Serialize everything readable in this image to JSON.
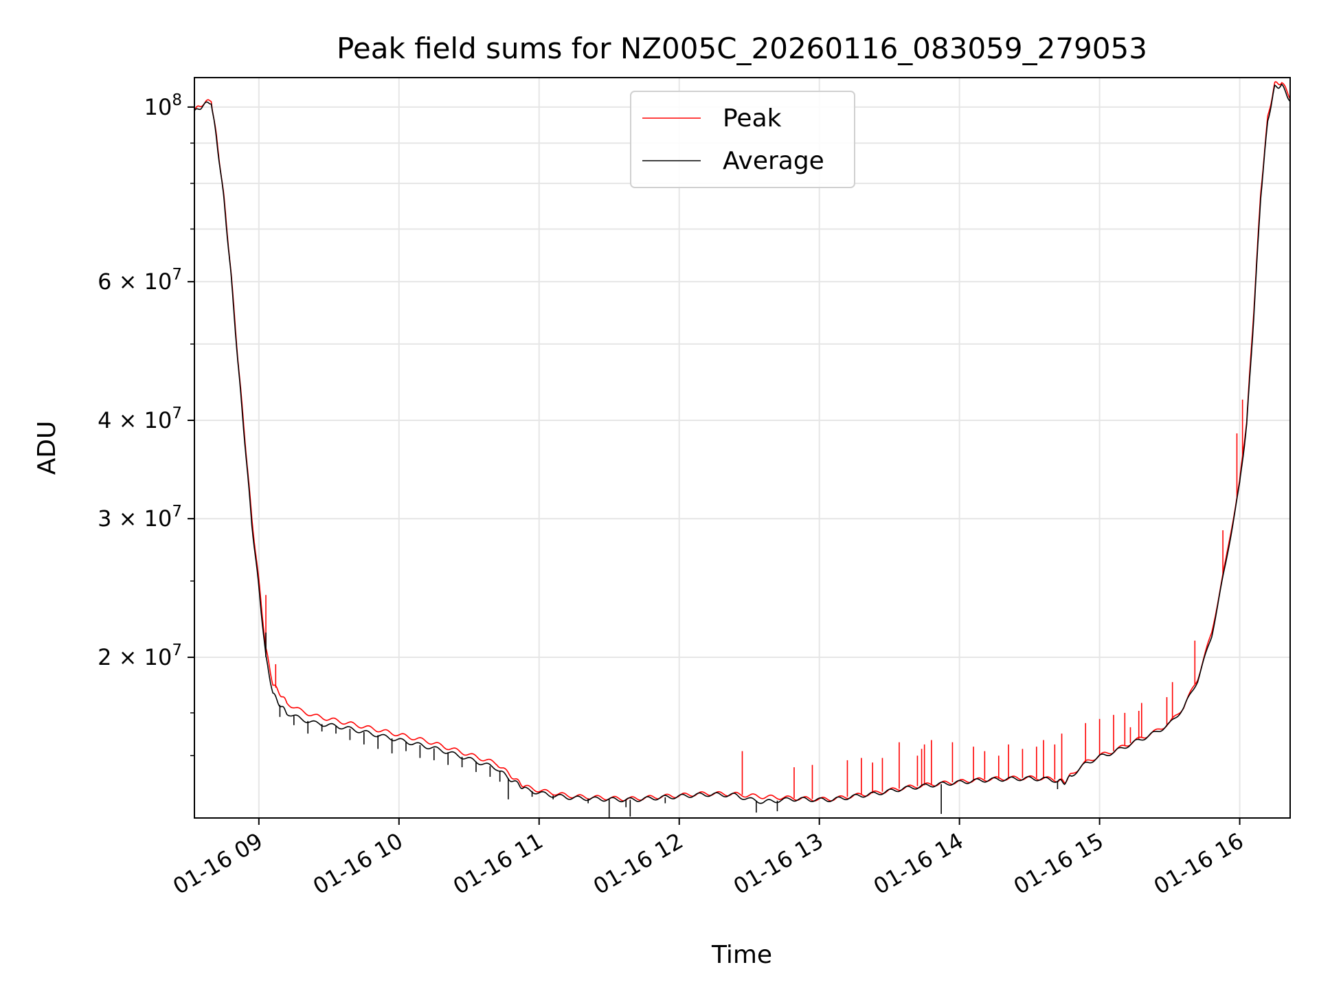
{
  "chart_data": {
    "type": "line",
    "title": "Peak field sums for NZ005C_20260116_083059_279053",
    "xlabel": "Time",
    "ylabel": "ADU",
    "yscale": "log",
    "xlim": [
      8.54,
      16.36
    ],
    "ylim": [
      12500000,
      109000000
    ],
    "grid": true,
    "legend_position": "upper center",
    "x_ticks": [
      {
        "value": 9,
        "label": "01-16 09"
      },
      {
        "value": 10,
        "label": "01-16 10"
      },
      {
        "value": 11,
        "label": "01-16 11"
      },
      {
        "value": 12,
        "label": "01-16 12"
      },
      {
        "value": 13,
        "label": "01-16 13"
      },
      {
        "value": 14,
        "label": "01-16 14"
      },
      {
        "value": 15,
        "label": "01-16 15"
      },
      {
        "value": 16,
        "label": "01-16 16"
      }
    ],
    "y_ticks": [
      {
        "value": 100000000,
        "base": "10",
        "exp": "8",
        "mult": ""
      },
      {
        "value": 60000000,
        "base": "10",
        "exp": "7",
        "mult": "6 × "
      },
      {
        "value": 40000000,
        "base": "10",
        "exp": "7",
        "mult": "4 × "
      },
      {
        "value": 30000000,
        "base": "10",
        "exp": "7",
        "mult": "3 × "
      },
      {
        "value": 20000000,
        "base": "10",
        "exp": "7",
        "mult": "2 × "
      }
    ],
    "y_minor_ticks": [
      90000000,
      80000000,
      70000000,
      50000000
    ],
    "x_unit": "hour of 2026-01-16",
    "series": [
      {
        "name": "Peak",
        "color": "#ff0000",
        "x": [
          8.54,
          8.6,
          8.66,
          8.7,
          8.75,
          8.8,
          8.85,
          8.9,
          8.95,
          9.0,
          9.05,
          9.1,
          9.15,
          9.2,
          9.3,
          9.4,
          9.5,
          9.6,
          9.7,
          9.8,
          9.9,
          10.0,
          10.1,
          10.2,
          10.3,
          10.4,
          10.5,
          10.6,
          10.7,
          10.78,
          10.85,
          10.9,
          11.0,
          11.1,
          11.2,
          11.3,
          11.4,
          11.5,
          11.6,
          11.7,
          11.8,
          11.9,
          12.0,
          12.1,
          12.2,
          12.3,
          12.4,
          12.5,
          12.6,
          12.7,
          12.8,
          12.9,
          13.0,
          13.1,
          13.2,
          13.3,
          13.4,
          13.5,
          13.6,
          13.7,
          13.8,
          13.9,
          14.0,
          14.1,
          14.2,
          14.3,
          14.4,
          14.5,
          14.6,
          14.7,
          14.75,
          14.8,
          14.9,
          15.0,
          15.1,
          15.2,
          15.3,
          15.4,
          15.5,
          15.6,
          15.7,
          15.8,
          15.9,
          16.0,
          16.05,
          16.1,
          16.15,
          16.2,
          16.25,
          16.3,
          16.36
        ],
        "values": [
          99000000,
          101000000,
          102000000,
          91000000,
          77000000,
          62000000,
          48000000,
          38000000,
          30000000,
          25000000,
          20500000,
          18500000,
          18000000,
          17500000,
          17100000,
          16850000,
          16700000,
          16550000,
          16400000,
          16250000,
          16100000,
          15950000,
          15800000,
          15650000,
          15450000,
          15250000,
          15050000,
          14850000,
          14650000,
          14250000,
          13900000,
          13700000,
          13550000,
          13450000,
          13350000,
          13300000,
          13280000,
          13250000,
          13220000,
          13230000,
          13280000,
          13320000,
          13350000,
          13400000,
          13430000,
          13420000,
          13400000,
          13350000,
          13300000,
          13280000,
          13250000,
          13230000,
          13200000,
          13220000,
          13300000,
          13380000,
          13450000,
          13550000,
          13650000,
          13720000,
          13790000,
          13850000,
          13900000,
          13960000,
          14000000,
          14030000,
          14050000,
          14060000,
          14040000,
          13970000,
          13900000,
          14200000,
          14700000,
          15000000,
          15200000,
          15500000,
          15800000,
          16100000,
          16500000,
          17300000,
          18800000,
          21500000,
          26500000,
          33500000,
          40000000,
          55000000,
          78000000,
          97000000,
          107000000,
          107500000,
          103000000
        ],
        "spikes": [
          [
            9.05,
            24000000
          ],
          [
            9.12,
            19600000
          ],
          [
            12.45,
            15200000
          ],
          [
            12.82,
            14500000
          ],
          [
            12.95,
            14600000
          ],
          [
            13.2,
            14800000
          ],
          [
            13.3,
            14900000
          ],
          [
            13.38,
            14700000
          ],
          [
            13.45,
            14900000
          ],
          [
            13.57,
            15600000
          ],
          [
            13.7,
            15000000
          ],
          [
            13.73,
            15300000
          ],
          [
            13.75,
            15500000
          ],
          [
            13.8,
            15700000
          ],
          [
            13.95,
            15600000
          ],
          [
            14.1,
            15400000
          ],
          [
            14.18,
            15200000
          ],
          [
            14.28,
            15000000
          ],
          [
            14.35,
            15500000
          ],
          [
            14.45,
            15300000
          ],
          [
            14.55,
            15400000
          ],
          [
            14.6,
            15700000
          ],
          [
            14.68,
            15500000
          ],
          [
            14.73,
            16000000
          ],
          [
            14.9,
            16500000
          ],
          [
            15.0,
            16700000
          ],
          [
            15.1,
            16900000
          ],
          [
            15.18,
            17000000
          ],
          [
            15.22,
            16300000
          ],
          [
            15.28,
            17100000
          ],
          [
            15.3,
            17500000
          ],
          [
            15.48,
            17800000
          ],
          [
            15.52,
            18600000
          ],
          [
            15.68,
            21000000
          ],
          [
            15.88,
            29000000
          ],
          [
            15.98,
            38500000
          ],
          [
            16.02,
            42500000
          ]
        ]
      },
      {
        "name": "Average",
        "color": "#000000",
        "x": [
          8.54,
          8.6,
          8.66,
          8.7,
          8.75,
          8.8,
          8.85,
          8.9,
          8.95,
          9.0,
          9.05,
          9.1,
          9.15,
          9.2,
          9.3,
          9.4,
          9.5,
          9.6,
          9.7,
          9.8,
          9.9,
          10.0,
          10.1,
          10.2,
          10.3,
          10.4,
          10.5,
          10.6,
          10.7,
          10.78,
          10.85,
          10.9,
          11.0,
          11.1,
          11.2,
          11.3,
          11.4,
          11.5,
          11.6,
          11.7,
          11.8,
          11.9,
          12.0,
          12.1,
          12.2,
          12.3,
          12.4,
          12.5,
          12.6,
          12.7,
          12.8,
          12.9,
          13.0,
          13.1,
          13.2,
          13.3,
          13.4,
          13.5,
          13.6,
          13.7,
          13.8,
          13.9,
          14.0,
          14.1,
          14.2,
          14.3,
          14.4,
          14.5,
          14.6,
          14.7,
          14.75,
          14.8,
          14.9,
          15.0,
          15.1,
          15.2,
          15.3,
          15.4,
          15.5,
          15.6,
          15.7,
          15.8,
          15.9,
          16.0,
          16.05,
          16.1,
          16.15,
          16.2,
          16.25,
          16.3,
          16.36
        ],
        "values": [
          98500000,
          100500000,
          101500000,
          90500000,
          76500000,
          61500000,
          47500000,
          37500000,
          29500000,
          24500000,
          20000000,
          18000000,
          17400000,
          17000000,
          16700000,
          16500000,
          16400000,
          16300000,
          16150000,
          16000000,
          15850000,
          15700000,
          15550000,
          15400000,
          15250000,
          15050000,
          14850000,
          14650000,
          14450000,
          14050000,
          13800000,
          13600000,
          13450000,
          13350000,
          13280000,
          13240000,
          13220000,
          13200000,
          13180000,
          13190000,
          13240000,
          13280000,
          13310000,
          13360000,
          13390000,
          13380000,
          13360000,
          13200000,
          13100000,
          13150000,
          13210000,
          13200000,
          13180000,
          13190000,
          13270000,
          13350000,
          13420000,
          13520000,
          13620000,
          13690000,
          13760000,
          13820000,
          13870000,
          13930000,
          13970000,
          14000000,
          14020000,
          14030000,
          14010000,
          13940000,
          13870000,
          14150000,
          14650000,
          14950000,
          15150000,
          15450000,
          15750000,
          16050000,
          16450000,
          17250000,
          18700000,
          21300000,
          26300000,
          33200000,
          39500000,
          54000000,
          77000000,
          96000000,
          106000000,
          106500000,
          102000000
        ],
        "dips": [
          [
            9.05,
            21500000
          ],
          [
            9.1,
            18000000
          ],
          [
            9.15,
            16800000
          ],
          [
            9.25,
            16400000
          ],
          [
            9.35,
            16000000
          ],
          [
            9.45,
            16100000
          ],
          [
            9.55,
            16000000
          ],
          [
            9.65,
            15700000
          ],
          [
            9.75,
            15500000
          ],
          [
            9.85,
            15300000
          ],
          [
            9.95,
            15100000
          ],
          [
            10.05,
            15200000
          ],
          [
            10.15,
            14900000
          ],
          [
            10.25,
            14800000
          ],
          [
            10.35,
            14600000
          ],
          [
            10.45,
            14500000
          ],
          [
            10.55,
            14300000
          ],
          [
            10.65,
            14100000
          ],
          [
            10.72,
            13900000
          ],
          [
            10.78,
            13200000
          ],
          [
            10.95,
            13300000
          ],
          [
            11.1,
            13200000
          ],
          [
            11.35,
            13050000
          ],
          [
            11.5,
            12500000
          ],
          [
            11.62,
            12900000
          ],
          [
            11.65,
            12550000
          ],
          [
            11.9,
            13050000
          ],
          [
            12.55,
            12700000
          ],
          [
            12.7,
            12750000
          ],
          [
            13.87,
            12650000
          ],
          [
            14.7,
            13600000
          ]
        ]
      }
    ]
  }
}
